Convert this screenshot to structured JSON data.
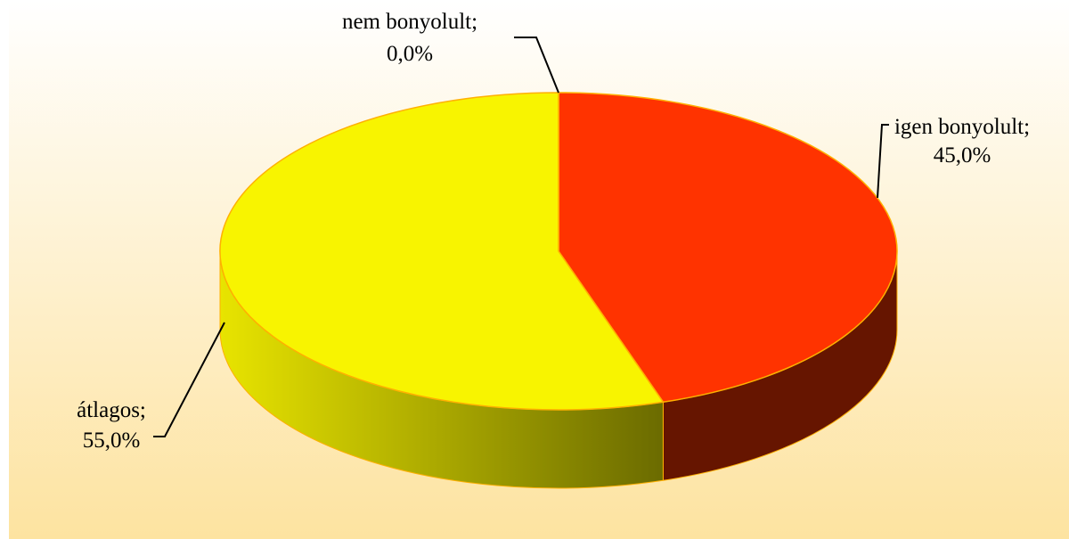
{
  "chart_data": {
    "type": "pie",
    "categories": [
      "igen bonyolult;",
      "átlagos;",
      "nem bonyolult;"
    ],
    "values": [
      45,
      55,
      0
    ],
    "value_labels": [
      "45,0%",
      "55,0%",
      "0,0%"
    ],
    "colors": [
      "#ff3300",
      "#f8f400",
      "#4472c4"
    ]
  }
}
